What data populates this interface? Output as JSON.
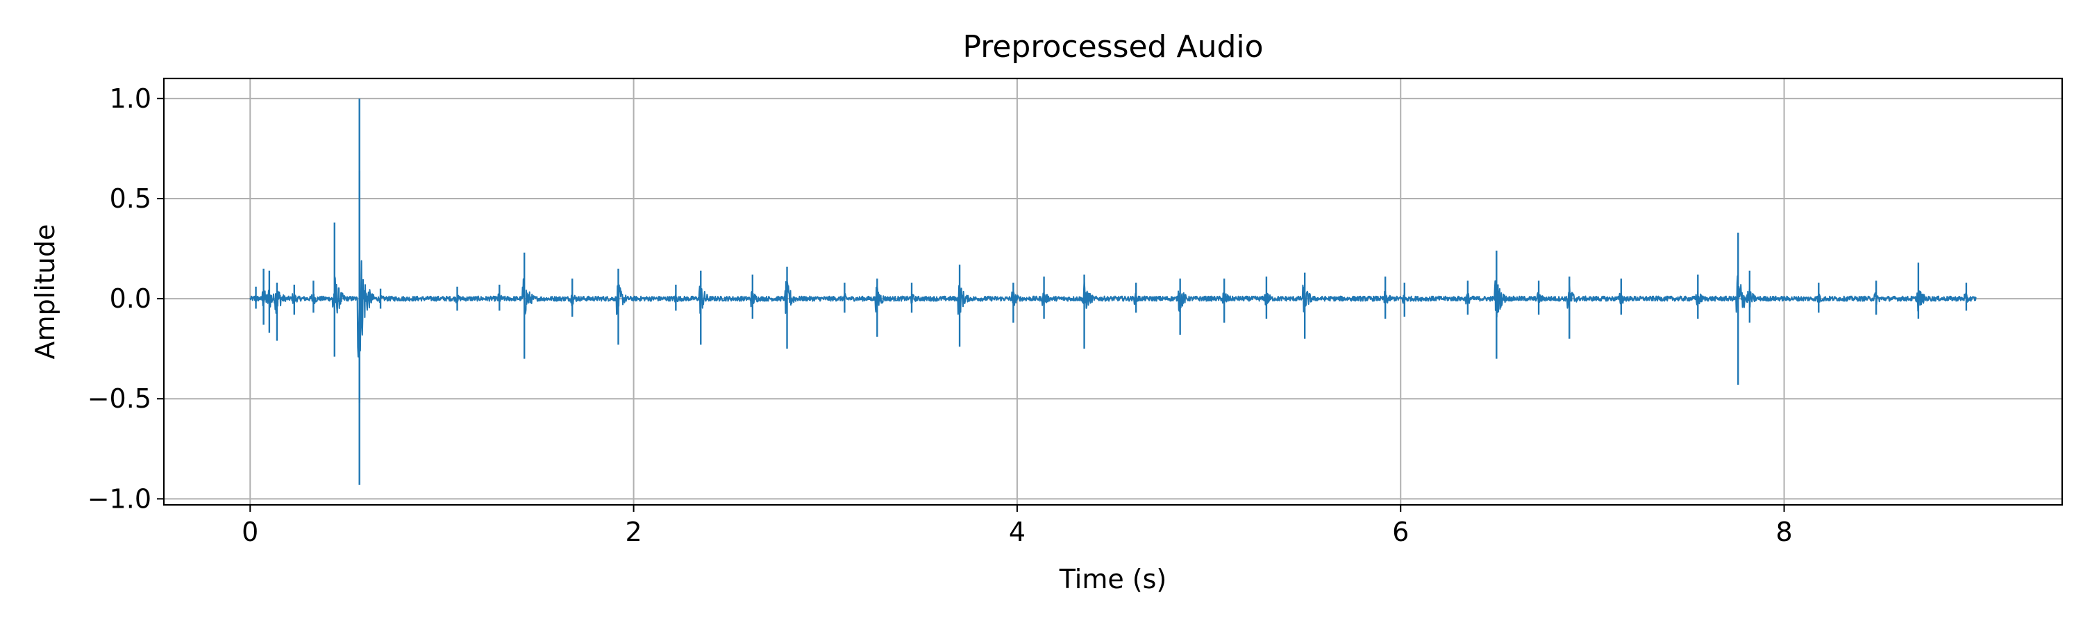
{
  "chart_data": {
    "type": "line",
    "title": "Preprocessed Audio",
    "xlabel": "Time (s)",
    "ylabel": "Amplitude",
    "xlim": [
      -0.45,
      9.45
    ],
    "ylim": [
      -1.03,
      1.1
    ],
    "x_ticks": [
      0,
      2,
      4,
      6,
      8
    ],
    "x_tick_labels": [
      "0",
      "2",
      "4",
      "6",
      "8"
    ],
    "y_ticks": [
      1.0,
      0.5,
      0.0,
      -0.5,
      -1.0
    ],
    "y_tick_labels": [
      "1.0",
      "0.5",
      "0.0",
      "−0.5",
      "−1.0"
    ],
    "grid": true,
    "legend": "none",
    "duration_s": 9.0,
    "noise_level": 0.012,
    "series": [
      {
        "color": "#1f77b4",
        "peaks": [
          [
            0.03,
            0.06,
            -0.05
          ],
          [
            0.07,
            0.15,
            -0.13
          ],
          [
            0.1,
            0.14,
            -0.17
          ],
          [
            0.14,
            0.08,
            -0.21
          ],
          [
            0.23,
            0.07,
            -0.08
          ],
          [
            0.33,
            0.09,
            -0.07
          ],
          [
            0.44,
            0.38,
            -0.29
          ],
          [
            0.57,
            1.0,
            -0.93
          ],
          [
            0.57,
            0.64,
            -0.52
          ],
          [
            0.68,
            0.05,
            -0.05
          ],
          [
            1.08,
            0.06,
            -0.06
          ],
          [
            1.3,
            0.07,
            -0.06
          ],
          [
            1.43,
            0.23,
            -0.3
          ],
          [
            1.68,
            0.1,
            -0.09
          ],
          [
            1.92,
            0.15,
            -0.23
          ],
          [
            2.22,
            0.07,
            -0.06
          ],
          [
            2.35,
            0.14,
            -0.23
          ],
          [
            2.62,
            0.12,
            -0.1
          ],
          [
            2.8,
            0.16,
            -0.25
          ],
          [
            3.1,
            0.08,
            -0.07
          ],
          [
            3.27,
            0.1,
            -0.19
          ],
          [
            3.45,
            0.08,
            -0.07
          ],
          [
            3.7,
            0.17,
            -0.24
          ],
          [
            3.98,
            0.08,
            -0.12
          ],
          [
            4.14,
            0.11,
            -0.1
          ],
          [
            4.35,
            0.12,
            -0.25
          ],
          [
            4.62,
            0.08,
            -0.07
          ],
          [
            4.85,
            0.1,
            -0.18
          ],
          [
            5.08,
            0.1,
            -0.12
          ],
          [
            5.3,
            0.11,
            -0.1
          ],
          [
            5.5,
            0.13,
            -0.2
          ],
          [
            5.92,
            0.11,
            -0.1
          ],
          [
            6.02,
            0.08,
            -0.09
          ],
          [
            6.35,
            0.09,
            -0.08
          ],
          [
            6.5,
            0.24,
            -0.3
          ],
          [
            6.72,
            0.09,
            -0.08
          ],
          [
            6.88,
            0.11,
            -0.2
          ],
          [
            7.15,
            0.1,
            -0.08
          ],
          [
            7.55,
            0.12,
            -0.1
          ],
          [
            7.76,
            0.33,
            -0.43
          ],
          [
            7.82,
            0.14,
            -0.12
          ],
          [
            8.18,
            0.08,
            -0.07
          ],
          [
            8.48,
            0.09,
            -0.08
          ],
          [
            8.7,
            0.18,
            -0.1
          ],
          [
            8.95,
            0.08,
            -0.06
          ]
        ]
      }
    ]
  }
}
